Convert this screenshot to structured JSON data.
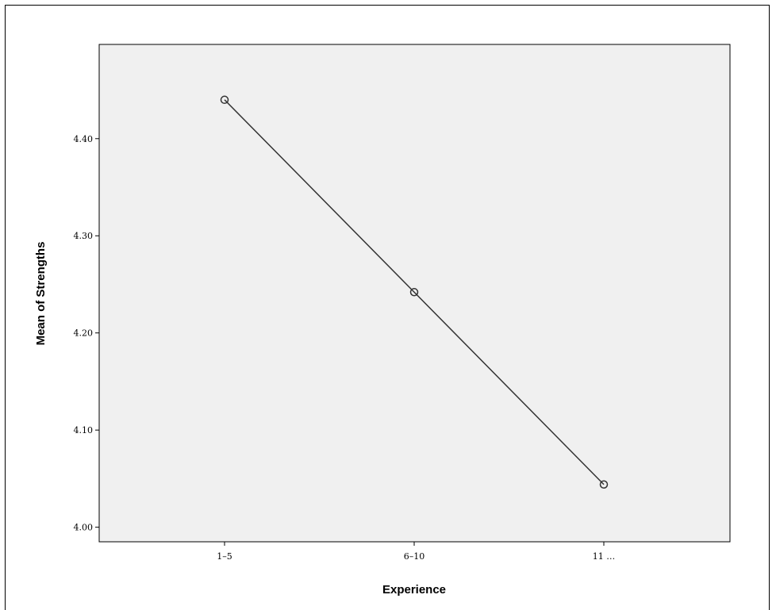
{
  "colors": {
    "plot_background": "#f0f0f0",
    "line": "#333333",
    "axis": "#000000"
  },
  "chart_data": {
    "type": "line",
    "title": "",
    "xlabel": "Experience",
    "ylabel": "Mean of Strengths",
    "categories": [
      "1–5",
      "6–10",
      "11 …"
    ],
    "series": [
      {
        "values": [
          4.44,
          4.242,
          4.044
        ],
        "marker": "open-circle"
      }
    ],
    "ylim": [
      3.985,
      4.497
    ],
    "yticks": [
      4.0,
      4.1,
      4.2,
      4.3,
      4.4
    ],
    "ytick_labels": [
      "4.00",
      "4.10",
      "4.20",
      "4.30",
      "4.40"
    ],
    "grid": false,
    "legend": "none"
  }
}
